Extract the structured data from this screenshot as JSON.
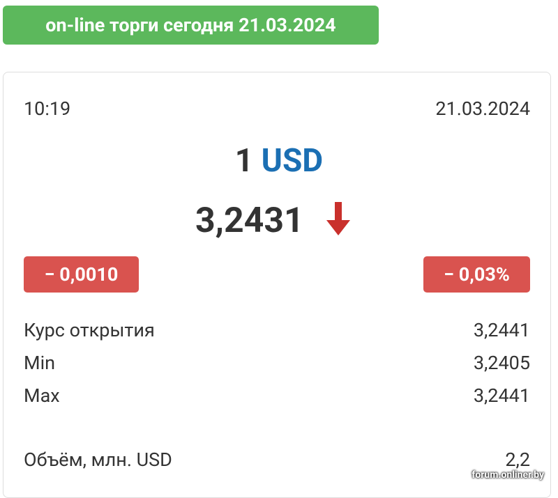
{
  "header": {
    "title": "on-line торги сегодня 21.03.2024"
  },
  "quote": {
    "time": "10:19",
    "date": "21.03.2024",
    "amount": "1",
    "currency": "USD",
    "rate": "3,2431",
    "change": "− 0,0010",
    "change_percent": "− 0,03%"
  },
  "stats": {
    "rows": [
      [
        "Курс открытия",
        "3,2441"
      ],
      [
        "Min",
        "3,2405"
      ],
      [
        "Max",
        "3,2441"
      ]
    ],
    "volume": [
      "Объём, млн. USD",
      "2,2"
    ]
  },
  "watermark": "forum.onliner.by"
}
